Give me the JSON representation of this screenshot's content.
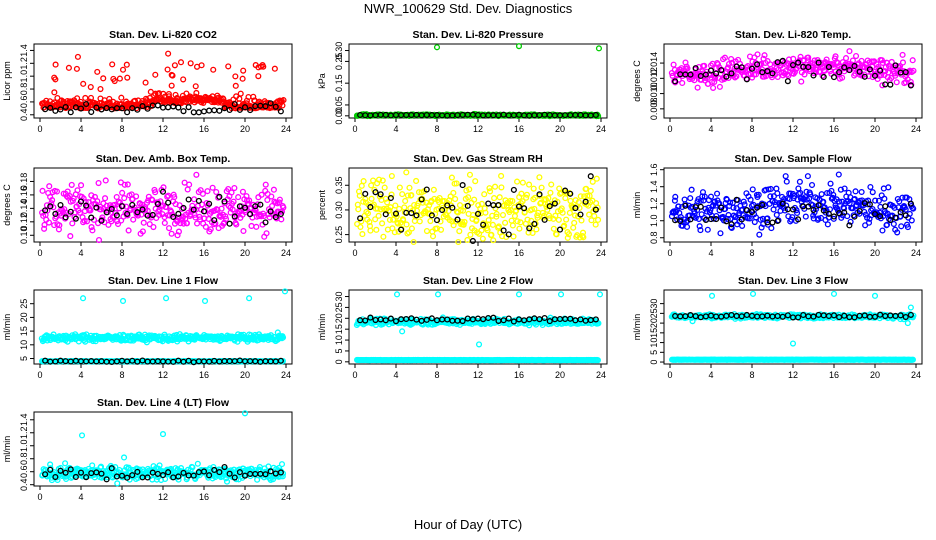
{
  "page": {
    "title": "NWR_100629  Std. Dev. Diagnostics",
    "xlabel": "Hour of Day (UTC)"
  },
  "colors": {
    "red": "#ff0000",
    "green": "#00cc00",
    "magenta": "#ff00ff",
    "yellow": "#ffff00",
    "blue": "#0000ff",
    "cyan": "#00ffff",
    "black": "#000000"
  },
  "chart_data": [
    {
      "type": "scatter",
      "id": "co2",
      "title": "Stan. Dev. Li-820 CO2",
      "ylabel": "Licor ppm",
      "xlim": [
        0,
        24
      ],
      "xticks": [
        0,
        4,
        8,
        12,
        16,
        20,
        24
      ],
      "ylim": [
        0.35,
        1.5
      ],
      "yticks": [
        0.4,
        0.6,
        0.8,
        1.0,
        1.2,
        1.4
      ],
      "ytick_labels": [
        "0.4",
        "0.6",
        "0.8",
        "1.0",
        "1.2",
        "1.4"
      ],
      "color": "red",
      "base": 0.5,
      "spread": 0.07,
      "outlier_y": [
        0.95,
        1.3,
        0.8,
        1.1,
        0.9,
        1.35,
        1.2,
        1.1,
        0.85,
        1.0
      ],
      "black_base": 0.5,
      "black_spread": 0.04
    },
    {
      "type": "scatter",
      "id": "pressure",
      "title": "Stan. Dev. Li-820 Pressure",
      "ylabel": "kPa",
      "xlim": [
        0,
        24
      ],
      "xticks": [
        0,
        4,
        8,
        12,
        16,
        20,
        24
      ],
      "ylim": [
        -0.01,
        0.33
      ],
      "yticks": [
        0.0,
        0.05,
        0.15,
        0.25,
        0.3
      ],
      "ytick_labels": [
        "0.00",
        "0.05",
        "0.15",
        "0.25",
        "0.30"
      ],
      "color": "green",
      "base": 0.003,
      "spread": 0.002,
      "spikes": [
        [
          8.0,
          0.315
        ],
        [
          16.0,
          0.32
        ],
        [
          23.8,
          0.31
        ],
        [
          0.2,
          0.0
        ]
      ],
      "black_base": 0.003,
      "black_spread": 0.001
    },
    {
      "type": "scatter",
      "id": "temp",
      "title": "Stan. Dev. Li-820 Temp.",
      "ylabel": "degrees C",
      "xlim": [
        0,
        24
      ],
      "xticks": [
        0,
        4,
        8,
        12,
        16,
        20,
        24
      ],
      "ylim": [
        0.0068,
        0.0165
      ],
      "yticks": [
        0.008,
        0.01,
        0.012,
        0.014
      ],
      "ytick_labels": [
        "0.008",
        "0.010",
        "0.012",
        "0.014"
      ],
      "color": "magenta",
      "base": 0.0128,
      "spread": 0.0009,
      "black_base": 0.0126,
      "black_spread": 0.001
    },
    {
      "type": "scatter",
      "id": "ambbox",
      "title": "Stan. Dev. Amb. Box Temp.",
      "ylabel": "degrees C",
      "xlim": [
        0,
        24
      ],
      "xticks": [
        0,
        4,
        8,
        12,
        16,
        20,
        24
      ],
      "ylim": [
        0.09,
        0.2
      ],
      "yticks": [
        0.1,
        0.12,
        0.14,
        0.16,
        0.18
      ],
      "ytick_labels": [
        "0.10",
        "0.12",
        "0.14",
        "0.16",
        "0.18"
      ],
      "color": "magenta",
      "base": 0.14,
      "spread": 0.017,
      "black_base": 0.135,
      "black_spread": 0.012
    },
    {
      "type": "scatter",
      "id": "rh",
      "title": "Stan. Dev. Gas Stream RH",
      "ylabel": "percent",
      "xlim": [
        0,
        24
      ],
      "xticks": [
        0,
        4,
        8,
        12,
        16,
        20,
        24
      ],
      "ylim": [
        0.235,
        0.385
      ],
      "yticks": [
        0.25,
        0.3,
        0.35
      ],
      "ytick_labels": [
        "0.25",
        "0.30",
        "0.35"
      ],
      "color": "yellow",
      "base": 0.3,
      "spread": 0.03,
      "black_base": 0.3,
      "black_spread": 0.025
    },
    {
      "type": "scatter",
      "id": "sample",
      "title": "Stan. Dev. Sample Flow",
      "ylabel": "ml/min",
      "xlim": [
        0,
        24
      ],
      "xticks": [
        0,
        4,
        8,
        12,
        16,
        20,
        24
      ],
      "ylim": [
        0.75,
        1.62
      ],
      "yticks": [
        0.8,
        1.0,
        1.2,
        1.4,
        1.6
      ],
      "ytick_labels": [
        "0.8",
        "1.0",
        "1.2",
        "1.4",
        "1.6"
      ],
      "color": "blue",
      "base": 1.12,
      "spread": 0.12,
      "black_base": 1.1,
      "black_spread": 0.08
    },
    {
      "type": "scatter",
      "id": "line1",
      "title": "Stan. Dev. Line 1 Flow",
      "ylabel": "ml/min",
      "xlim": [
        0,
        24
      ],
      "xticks": [
        0,
        4,
        8,
        12,
        16,
        20,
        24
      ],
      "ylim": [
        3,
        30
      ],
      "yticks": [
        5,
        10,
        15,
        20,
        25
      ],
      "ytick_labels": [
        "5",
        "10",
        "15",
        "20",
        "25"
      ],
      "color": "cyan",
      "base": 12.5,
      "spread": 0.6,
      "low_line": 4.0,
      "spikes": [
        [
          4.2,
          27
        ],
        [
          8.1,
          26
        ],
        [
          12.3,
          27
        ],
        [
          16.1,
          26
        ],
        [
          20.4,
          27
        ],
        [
          23.9,
          29.5
        ],
        [
          23.2,
          14.5
        ]
      ],
      "black_base": 4.0,
      "black_spread": 0.15
    },
    {
      "type": "scatter",
      "id": "line2",
      "title": "Stan. Dev. Line 2 Flow",
      "ylabel": "ml/min",
      "xlim": [
        0,
        24
      ],
      "xticks": [
        0,
        4,
        8,
        12,
        16,
        20,
        24
      ],
      "ylim": [
        -1,
        33
      ],
      "yticks": [
        0,
        5,
        10,
        15,
        20,
        25,
        30
      ],
      "ytick_labels": [
        "0",
        "5",
        "10",
        "15",
        "20",
        "25",
        "30"
      ],
      "color": "cyan",
      "base": 18.5,
      "spread": 0.7,
      "low_line": 0.8,
      "spikes": [
        [
          4.1,
          31
        ],
        [
          8.1,
          31
        ],
        [
          12.1,
          8
        ],
        [
          16.0,
          31
        ],
        [
          20.1,
          31
        ],
        [
          23.9,
          31
        ],
        [
          4.6,
          14
        ]
      ],
      "black_base": 19.5,
      "black_spread": 0.5
    },
    {
      "type": "scatter",
      "id": "line3",
      "title": "Stan. Dev. Line 3 Flow",
      "ylabel": "ml/min",
      "xlim": [
        0,
        24
      ],
      "xticks": [
        0,
        4,
        8,
        12,
        16,
        20,
        24
      ],
      "ylim": [
        -1,
        37
      ],
      "yticks": [
        0,
        5,
        10,
        15,
        20,
        25,
        30
      ],
      "ytick_labels": [
        "0",
        "5",
        "10",
        "15",
        "20",
        "25",
        "30"
      ],
      "color": "cyan",
      "base": 23.5,
      "spread": 0.5,
      "low_line": 1.2,
      "spikes": [
        [
          4.1,
          34
        ],
        [
          8.1,
          35
        ],
        [
          12.0,
          9.5
        ],
        [
          16.0,
          35
        ],
        [
          20.0,
          34
        ],
        [
          23.5,
          28
        ],
        [
          23.2,
          20
        ],
        [
          22.8,
          22
        ],
        [
          2.2,
          21
        ]
      ],
      "black_base": 23.5,
      "black_spread": 0.4
    },
    {
      "type": "scatter",
      "id": "line4",
      "title": "Stan. Dev. Line 4 (LT) Flow",
      "ylabel": "ml/min",
      "xlim": [
        0,
        24
      ],
      "xticks": [
        0,
        4,
        8,
        12,
        16,
        20,
        24
      ],
      "ylim": [
        0.38,
        1.52
      ],
      "yticks": [
        0.4,
        0.6,
        0.8,
        1.0,
        1.2,
        1.4
      ],
      "ytick_labels": [
        "0.4",
        "0.6",
        "0.8",
        "1.0",
        "1.2",
        "1.4"
      ],
      "color": "cyan",
      "base": 0.58,
      "spread": 0.05,
      "spikes": [
        [
          4.1,
          1.16
        ],
        [
          12.0,
          1.18
        ],
        [
          20.0,
          1.5
        ],
        [
          8.2,
          0.82
        ]
      ],
      "black_base": 0.57,
      "black_spread": 0.05
    }
  ]
}
